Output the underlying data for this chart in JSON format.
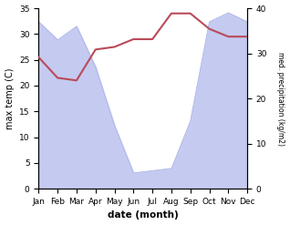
{
  "months": [
    "Jan",
    "Feb",
    "Mar",
    "Apr",
    "May",
    "Jun",
    "Jul",
    "Aug",
    "Sep",
    "Oct",
    "Nov",
    "Dec"
  ],
  "month_positions": [
    0,
    1,
    2,
    3,
    4,
    5,
    6,
    7,
    8,
    9,
    10,
    11
  ],
  "temperature": [
    25.5,
    21.5,
    21.0,
    27.0,
    27.5,
    29.0,
    29.0,
    34.0,
    34.0,
    31.0,
    29.5,
    29.5
  ],
  "precipitation": [
    37,
    33,
    36,
    27,
    14,
    3.5,
    4,
    4.5,
    15,
    37,
    39,
    37
  ],
  "temp_ylim": [
    0,
    35
  ],
  "precip_ylim": [
    0,
    40
  ],
  "temp_yticks": [
    0,
    5,
    10,
    15,
    20,
    25,
    30,
    35
  ],
  "precip_yticks": [
    0,
    10,
    20,
    30,
    40
  ],
  "temp_color": "#b94a5a",
  "precip_fill_color": "#c5caf0",
  "precip_line_color": "#aab4e8",
  "xlabel": "date (month)",
  "ylabel_left": "max temp (C)",
  "ylabel_right": "med. precipitation (kg/m2)",
  "figsize": [
    3.18,
    2.47
  ],
  "dpi": 100,
  "bg_color": "#ffffff"
}
